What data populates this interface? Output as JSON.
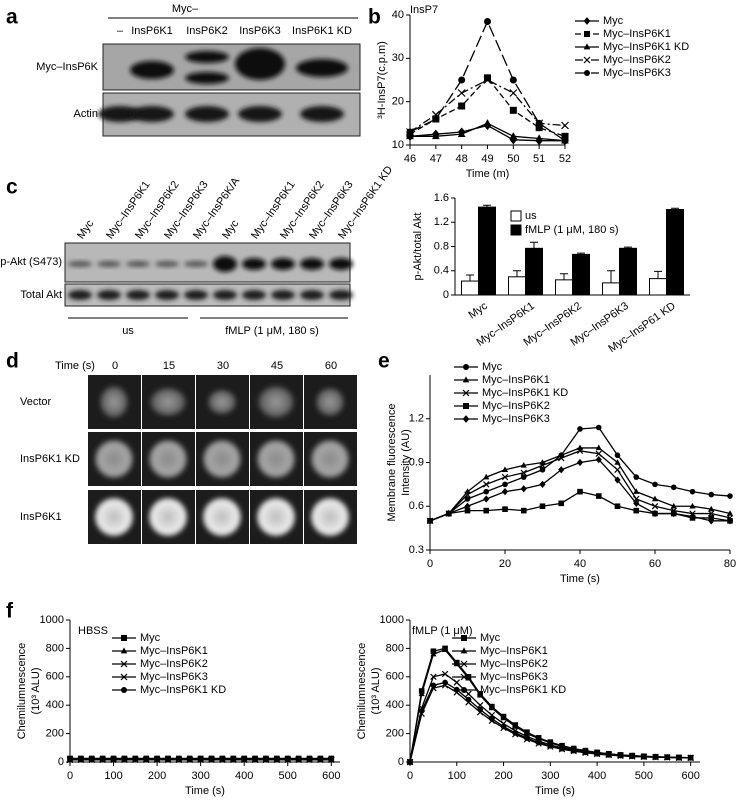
{
  "panel_labels": [
    "a",
    "b",
    "c",
    "d",
    "e",
    "f"
  ],
  "blot_a": {
    "group_label": "Myc–",
    "lanes": [
      "–",
      "InsP6K1",
      "InsP6K2",
      "InsP6K3",
      "InsP6K1 KD"
    ],
    "rows": [
      "Myc–InsP6K",
      "Actin"
    ]
  },
  "blot_c": {
    "lanes": [
      "Myc",
      "Myc–InsP6K1",
      "Myc–InsP6K2",
      "Myc–InsP6K3",
      "Myc–InsP6K/A",
      "Myc",
      "Myc–InsP6K1",
      "Myc–InsP6K2",
      "Myc–InsP6K3",
      "Myc–InsP6K1 KD"
    ],
    "rows": [
      "p-Akt (S473)",
      "Total Akt"
    ],
    "groups": [
      "us",
      "fMLP (1 μM, 180 s)"
    ]
  },
  "images_d": {
    "time_label": "Time (s)",
    "times": [
      0,
      15,
      30,
      45,
      60
    ],
    "rows": [
      "Vector",
      "InsP6K1 KD",
      "InsP6K1"
    ]
  },
  "chart_data": [
    {
      "type": "line",
      "title": "InsP7",
      "xlabel": "Time (m)",
      "ylabel": "³H-InsP7(c.p.m)",
      "x": [
        46,
        47,
        48,
        49,
        50,
        51,
        52
      ],
      "xlim": [
        46,
        52
      ],
      "xticks": [
        46,
        47,
        48,
        49,
        50,
        51,
        52
      ],
      "ylim": [
        10,
        40
      ],
      "yticks": [
        10,
        20,
        30,
        40
      ],
      "legend": "outside right",
      "series": [
        {
          "name": "Myc",
          "color": "#000000",
          "marker": "diamond",
          "linestyle": "solid",
          "values": [
            12,
            12.5,
            13,
            14.5,
            11.2,
            11,
            11
          ]
        },
        {
          "name": "Myc–InsP6K1",
          "color": "#000000",
          "marker": "square",
          "linestyle": "dashed",
          "values": [
            12.5,
            16,
            19,
            25.5,
            18,
            14,
            12
          ]
        },
        {
          "name": "Myc–InsP6K1 KD",
          "color": "#000000",
          "marker": "triangle",
          "linestyle": "solid",
          "values": [
            12,
            12,
            12.5,
            15,
            12,
            11.5,
            11
          ]
        },
        {
          "name": "Myc–InsP6K2",
          "color": "#000000",
          "marker": "x",
          "linestyle": "dashdot",
          "values": [
            13,
            17,
            22,
            25,
            22,
            15,
            14.5
          ]
        },
        {
          "name": "Myc–InsP6K3",
          "color": "#000000",
          "marker": "circle",
          "linestyle": "longdash",
          "values": [
            13,
            16,
            25,
            38.5,
            25,
            15,
            11
          ]
        }
      ]
    },
    {
      "type": "bar",
      "ylabel": "p-Akt/total Akt",
      "categories": [
        "Myc",
        "Myc–InsP6K1",
        "Myc–InsP6K2",
        "Myc–InsP6K3",
        "Myc–InsP61 KD"
      ],
      "ylim": [
        0,
        1.6
      ],
      "yticks": [
        0,
        0.4,
        0.8,
        1.2,
        1.6
      ],
      "legend": "upper center",
      "series": [
        {
          "name": "us",
          "color": "#ffffff",
          "values": [
            0.23,
            0.3,
            0.25,
            0.2,
            0.27
          ],
          "errors": [
            0.1,
            0.1,
            0.1,
            0.2,
            0.12
          ]
        },
        {
          "name": "fMLP (1 μM, 180 s)",
          "color": "#000000",
          "values": [
            1.45,
            0.77,
            0.67,
            0.77,
            1.41
          ],
          "errors": [
            0.03,
            0.1,
            0.02,
            0.02,
            0.02
          ]
        }
      ]
    },
    {
      "type": "line",
      "xlabel": "Time (s)",
      "ylabel": [
        "Membrane fluorescence",
        "Intensity (AU)"
      ],
      "x": [
        0,
        5,
        10,
        15,
        20,
        25,
        30,
        35,
        40,
        45,
        50,
        55,
        60,
        65,
        70,
        75,
        80
      ],
      "xlim": [
        0,
        80
      ],
      "xticks": [
        0,
        20,
        40,
        60,
        80
      ],
      "ylim": [
        0.3,
        1.5
      ],
      "yticks": [
        0.3,
        0.6,
        0.9,
        1.2
      ],
      "legend": "upper left",
      "series": [
        {
          "name": "Myc",
          "color": "#000000",
          "marker": "circle",
          "linestyle": "solid",
          "values": [
            0.5,
            0.55,
            0.65,
            0.7,
            0.75,
            0.8,
            0.85,
            0.95,
            1.13,
            1.14,
            0.95,
            0.8,
            0.75,
            0.73,
            0.7,
            0.68,
            0.67
          ]
        },
        {
          "name": "Myc–InsP6K1",
          "color": "#000000",
          "marker": "triangle",
          "linestyle": "solid",
          "values": [
            0.5,
            0.55,
            0.7,
            0.8,
            0.85,
            0.88,
            0.9,
            0.95,
            1.0,
            1.0,
            0.9,
            0.7,
            0.65,
            0.6,
            0.6,
            0.58,
            0.55
          ]
        },
        {
          "name": "Myc–InsP6K1 KD",
          "color": "#000000",
          "marker": "x",
          "linestyle": "solid",
          "values": [
            0.5,
            0.55,
            0.68,
            0.75,
            0.8,
            0.83,
            0.88,
            0.93,
            0.98,
            0.96,
            0.85,
            0.65,
            0.6,
            0.57,
            0.55,
            0.55,
            0.52
          ]
        },
        {
          "name": "Myc–InsP6K2",
          "color": "#000000",
          "marker": "square",
          "linestyle": "solid",
          "values": [
            0.5,
            0.55,
            0.57,
            0.57,
            0.58,
            0.57,
            0.6,
            0.62,
            0.7,
            0.67,
            0.6,
            0.57,
            0.55,
            0.55,
            0.52,
            0.52,
            0.5
          ]
        },
        {
          "name": "Myc–InsP6K3",
          "color": "#000000",
          "marker": "diamond",
          "linestyle": "solid",
          "values": [
            0.5,
            0.55,
            0.6,
            0.65,
            0.7,
            0.72,
            0.75,
            0.85,
            0.9,
            0.92,
            0.78,
            0.62,
            0.55,
            0.55,
            0.53,
            0.5,
            0.5
          ]
        }
      ]
    },
    {
      "type": "line",
      "title": "HBSS",
      "xlabel": "Time (s)",
      "ylabel": [
        "Chemilumnescence",
        "(10³ ALU)"
      ],
      "x": [
        0,
        25,
        50,
        75,
        100,
        125,
        150,
        175,
        200,
        225,
        250,
        275,
        300,
        325,
        350,
        375,
        400,
        425,
        450,
        475,
        500,
        525,
        550,
        575,
        600
      ],
      "xlim": [
        0,
        620
      ],
      "xticks": [
        0,
        100,
        200,
        300,
        400,
        500,
        600
      ],
      "ylim": [
        0,
        1000
      ],
      "yticks": [
        0,
        200,
        400,
        600,
        800,
        1000
      ],
      "legend": "upper center",
      "series": [
        {
          "name": "Myc",
          "color": "#000000",
          "marker": "square",
          "linestyle": "solid",
          "values": [
            25,
            25,
            25,
            25,
            25,
            25,
            25,
            25,
            25,
            25,
            25,
            25,
            25,
            25,
            25,
            25,
            25,
            25,
            25,
            25,
            25,
            25,
            25,
            25,
            25
          ]
        },
        {
          "name": "Myc–InsP6K1",
          "color": "#000000",
          "marker": "triangle",
          "linestyle": "solid",
          "values": [
            20,
            20,
            20,
            20,
            20,
            20,
            20,
            20,
            20,
            20,
            20,
            20,
            20,
            20,
            20,
            20,
            20,
            20,
            20,
            20,
            20,
            20,
            20,
            20,
            20
          ]
        },
        {
          "name": "Myc–InsP6K2",
          "color": "#000000",
          "marker": "x",
          "linestyle": "solid",
          "values": [
            15,
            15,
            15,
            15,
            15,
            15,
            15,
            15,
            15,
            15,
            15,
            15,
            15,
            15,
            15,
            15,
            15,
            15,
            15,
            15,
            15,
            15,
            15,
            15,
            15
          ]
        },
        {
          "name": "Myc–InsP6K3",
          "color": "#000000",
          "marker": "x",
          "linestyle": "solid",
          "values": [
            18,
            18,
            18,
            18,
            18,
            18,
            18,
            18,
            18,
            18,
            18,
            18,
            18,
            18,
            18,
            18,
            18,
            18,
            18,
            18,
            18,
            18,
            18,
            18,
            18
          ]
        },
        {
          "name": "Myc–InsP6K1 KD",
          "color": "#000000",
          "marker": "circle",
          "linestyle": "solid",
          "values": [
            22,
            22,
            22,
            22,
            22,
            22,
            22,
            22,
            22,
            22,
            22,
            22,
            22,
            22,
            22,
            22,
            22,
            22,
            22,
            22,
            22,
            22,
            22,
            22,
            22
          ]
        }
      ]
    },
    {
      "type": "line",
      "title": "fMLP (1 μM)",
      "xlabel": "Time (s)",
      "ylabel": [
        "Chemilumnescence",
        "(10³ ALU)"
      ],
      "x": [
        0,
        25,
        50,
        75,
        100,
        125,
        150,
        175,
        200,
        225,
        250,
        275,
        300,
        325,
        350,
        375,
        400,
        425,
        450,
        475,
        500,
        525,
        550,
        575,
        600
      ],
      "xlim": [
        0,
        620
      ],
      "xticks": [
        0,
        100,
        200,
        300,
        400,
        500,
        600
      ],
      "ylim": [
        0,
        1000
      ],
      "yticks": [
        0,
        200,
        400,
        600,
        800,
        1000
      ],
      "legend": "upper center",
      "series": [
        {
          "name": "Myc",
          "color": "#000000",
          "marker": "square",
          "linestyle": "solid",
          "values": [
            0,
            500,
            780,
            800,
            700,
            600,
            480,
            390,
            320,
            260,
            210,
            170,
            140,
            115,
            95,
            80,
            68,
            58,
            50,
            45,
            40,
            37,
            34,
            32,
            30
          ]
        },
        {
          "name": "Myc–InsP6K1",
          "color": "#000000",
          "marker": "triangle",
          "linestyle": "solid",
          "values": [
            0,
            480,
            760,
            790,
            690,
            590,
            470,
            380,
            310,
            250,
            200,
            165,
            135,
            110,
            92,
            78,
            66,
            56,
            49,
            44,
            40,
            37,
            34,
            32,
            30
          ]
        },
        {
          "name": "Myc–InsP6K2",
          "color": "#000000",
          "marker": "x",
          "linestyle": "solid",
          "values": [
            0,
            380,
            600,
            620,
            560,
            480,
            400,
            330,
            270,
            220,
            180,
            148,
            120,
            100,
            85,
            72,
            62,
            54,
            47,
            42,
            38,
            35,
            33,
            31,
            30
          ]
        },
        {
          "name": "Myc–InsP6K3",
          "color": "#000000",
          "marker": "x",
          "linestyle": "solid",
          "values": [
            0,
            340,
            520,
            540,
            490,
            420,
            350,
            290,
            240,
            195,
            160,
            130,
            108,
            90,
            76,
            65,
            56,
            49,
            43,
            39,
            36,
            34,
            32,
            30,
            29
          ]
        },
        {
          "name": "Myc–InsP6K1 KD",
          "color": "#000000",
          "marker": "circle",
          "linestyle": "solid",
          "values": [
            0,
            360,
            540,
            560,
            510,
            440,
            370,
            305,
            250,
            205,
            168,
            137,
            113,
            94,
            80,
            68,
            58,
            50,
            45,
            40,
            37,
            34,
            32,
            30,
            29
          ]
        }
      ]
    }
  ]
}
